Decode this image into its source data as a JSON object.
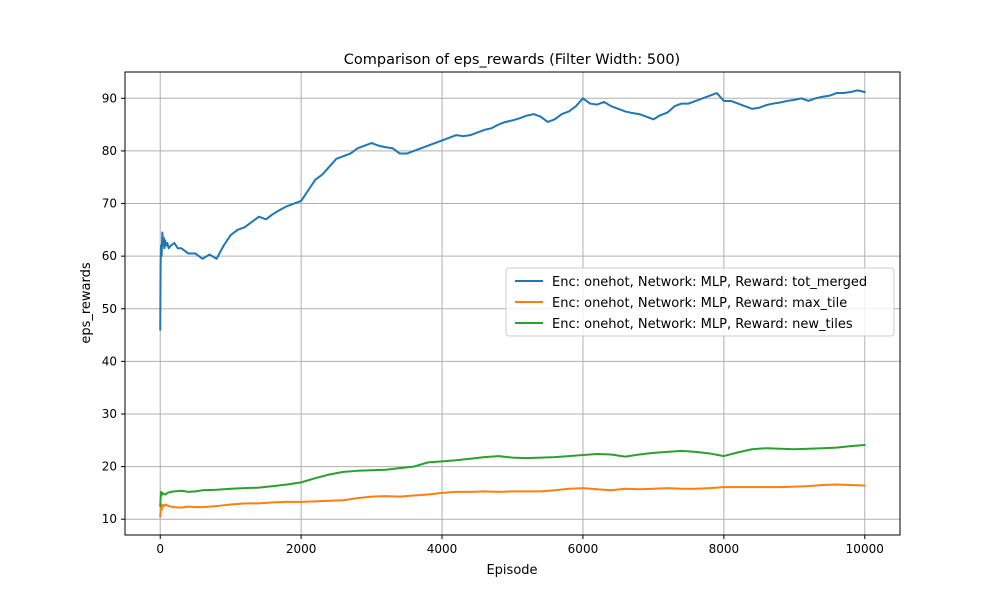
{
  "chart_data": {
    "type": "line",
    "title": "Comparison of eps_rewards (Filter Width: 500)",
    "xlabel": "Episode",
    "ylabel": "eps_rewards",
    "xlim": [
      -500,
      10500
    ],
    "ylim": [
      7,
      95
    ],
    "xticks": [
      0,
      2000,
      4000,
      6000,
      8000,
      10000
    ],
    "yticks": [
      10,
      20,
      30,
      40,
      50,
      60,
      70,
      80,
      90
    ],
    "grid": true,
    "legend_position": "center-right",
    "series": [
      {
        "name": "Enc: onehot, Network: MLP, Reward: tot_merged",
        "color": "#1f77b4",
        "x": [
          0,
          5,
          10,
          20,
          30,
          40,
          50,
          60,
          70,
          80,
          100,
          120,
          150,
          200,
          250,
          300,
          350,
          400,
          500,
          600,
          700,
          800,
          900,
          1000,
          1100,
          1200,
          1300,
          1400,
          1500,
          1600,
          1700,
          1800,
          1900,
          2000,
          2100,
          2200,
          2300,
          2400,
          2500,
          2600,
          2700,
          2800,
          2900,
          3000,
          3100,
          3200,
          3300,
          3400,
          3500,
          3600,
          3700,
          3800,
          3900,
          4000,
          4100,
          4200,
          4300,
          4400,
          4500,
          4600,
          4700,
          4800,
          4900,
          5000,
          5100,
          5200,
          5300,
          5400,
          5500,
          5600,
          5700,
          5800,
          5900,
          6000,
          6100,
          6200,
          6300,
          6400,
          6500,
          6600,
          6700,
          6800,
          6900,
          7000,
          7100,
          7200,
          7300,
          7400,
          7500,
          7600,
          7700,
          7800,
          7900,
          8000,
          8100,
          8200,
          8300,
          8400,
          8500,
          8600,
          8700,
          8800,
          8900,
          9000,
          9100,
          9200,
          9300,
          9400,
          9500,
          9600,
          9700,
          9800,
          9900,
          10000
        ],
        "y": [
          46,
          58,
          62,
          60,
          64.5,
          62,
          63.5,
          61.5,
          63,
          62,
          62.5,
          61.5,
          62,
          62.5,
          61.5,
          61.5,
          61,
          60.5,
          60.5,
          59.5,
          60.3,
          59.5,
          62,
          64,
          65,
          65.5,
          66.5,
          67.5,
          67,
          68,
          68.8,
          69.5,
          70,
          70.5,
          72.5,
          74.5,
          75.5,
          77,
          78.5,
          79,
          79.5,
          80.5,
          81,
          81.5,
          81,
          80.7,
          80.5,
          79.5,
          79.5,
          80,
          80.5,
          81,
          81.5,
          82,
          82.5,
          83,
          82.8,
          83,
          83.5,
          84,
          84.3,
          85,
          85.5,
          85.8,
          86.2,
          86.7,
          87,
          86.5,
          85.5,
          86,
          87,
          87.5,
          88.5,
          90,
          89,
          88.8,
          89.3,
          88.5,
          88,
          87.5,
          87.2,
          87,
          86.5,
          86,
          86.8,
          87.3,
          88.5,
          89,
          89,
          89.5,
          90,
          90.5,
          91,
          89.5,
          89.5,
          89,
          88.5,
          88,
          88.2,
          88.7,
          89,
          89.2,
          89.5,
          89.7,
          90,
          89.5,
          90,
          90.3,
          90.5,
          91,
          91,
          91.2,
          91.5,
          91.2
        ],
        "label_visible": true
      },
      {
        "name": "Enc: onehot, Network: MLP, Reward: max_tile",
        "color": "#ff7f0e",
        "x": [
          0,
          10,
          20,
          30,
          50,
          80,
          100,
          150,
          200,
          300,
          400,
          500,
          600,
          800,
          1000,
          1200,
          1400,
          1600,
          1800,
          2000,
          2200,
          2400,
          2600,
          2800,
          3000,
          3200,
          3400,
          3600,
          3800,
          4000,
          4200,
          4400,
          4600,
          4800,
          5000,
          5200,
          5400,
          5600,
          5800,
          6000,
          6200,
          6400,
          6600,
          6800,
          7000,
          7200,
          7400,
          7600,
          7800,
          8000,
          8200,
          8400,
          8600,
          8800,
          9000,
          9200,
          9400,
          9600,
          9800,
          10000
        ],
        "y": [
          10.5,
          12.5,
          11.8,
          12.8,
          12.5,
          12.8,
          12.6,
          12.4,
          12.3,
          12.2,
          12.4,
          12.3,
          12.3,
          12.5,
          12.8,
          13,
          13,
          13.2,
          13.3,
          13.3,
          13.4,
          13.5,
          13.6,
          14,
          14.3,
          14.4,
          14.3,
          14.5,
          14.7,
          15,
          15.2,
          15.2,
          15.3,
          15.2,
          15.3,
          15.3,
          15.3,
          15.5,
          15.8,
          15.9,
          15.7,
          15.5,
          15.8,
          15.7,
          15.8,
          15.9,
          15.8,
          15.8,
          15.9,
          16.1,
          16.1,
          16.1,
          16.1,
          16.1,
          16.2,
          16.3,
          16.5,
          16.6,
          16.5,
          16.4
        ],
        "label_visible": true
      },
      {
        "name": "Enc: onehot, Network: MLP, Reward: new_tiles",
        "color": "#2ca02c",
        "x": [
          0,
          10,
          20,
          30,
          50,
          80,
          100,
          150,
          200,
          300,
          400,
          500,
          600,
          800,
          1000,
          1200,
          1400,
          1600,
          1800,
          2000,
          2200,
          2400,
          2600,
          2800,
          3000,
          3200,
          3400,
          3600,
          3800,
          4000,
          4200,
          4400,
          4600,
          4800,
          5000,
          5200,
          5400,
          5600,
          5800,
          6000,
          6200,
          6400,
          6600,
          6800,
          7000,
          7200,
          7400,
          7600,
          7800,
          8000,
          8200,
          8400,
          8600,
          8800,
          9000,
          9200,
          9400,
          9600,
          9800,
          10000
        ],
        "y": [
          12.5,
          15.2,
          14.5,
          15,
          14.8,
          14.7,
          15,
          15.2,
          15.3,
          15.4,
          15.2,
          15.3,
          15.5,
          15.6,
          15.8,
          15.9,
          16,
          16.3,
          16.6,
          17,
          17.8,
          18.5,
          19,
          19.2,
          19.3,
          19.4,
          19.7,
          20,
          20.8,
          21,
          21.2,
          21.5,
          21.8,
          22,
          21.7,
          21.6,
          21.7,
          21.8,
          22,
          22.2,
          22.4,
          22.3,
          21.9,
          22.3,
          22.6,
          22.8,
          23,
          22.8,
          22.5,
          22,
          22.7,
          23.3,
          23.5,
          23.4,
          23.3,
          23.4,
          23.5,
          23.6,
          23.9,
          24.1
        ],
        "label_visible": true
      }
    ]
  }
}
